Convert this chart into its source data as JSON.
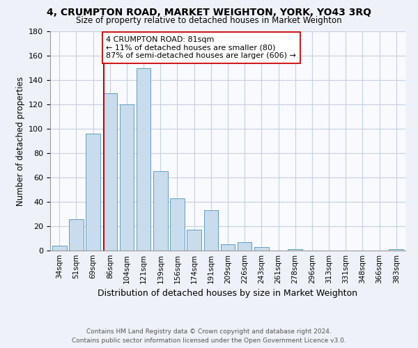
{
  "title": "4, CRUMPTON ROAD, MARKET WEIGHTON, YORK, YO43 3RQ",
  "subtitle": "Size of property relative to detached houses in Market Weighton",
  "xlabel": "Distribution of detached houses by size in Market Weighton",
  "ylabel": "Number of detached properties",
  "bar_labels": [
    "34sqm",
    "51sqm",
    "69sqm",
    "86sqm",
    "104sqm",
    "121sqm",
    "139sqm",
    "156sqm",
    "174sqm",
    "191sqm",
    "209sqm",
    "226sqm",
    "243sqm",
    "261sqm",
    "278sqm",
    "296sqm",
    "313sqm",
    "331sqm",
    "348sqm",
    "366sqm",
    "383sqm"
  ],
  "bar_values": [
    4,
    26,
    96,
    129,
    120,
    150,
    65,
    43,
    17,
    33,
    5,
    7,
    3,
    0,
    1,
    0,
    0,
    0,
    0,
    0,
    1
  ],
  "bar_color": "#c9dced",
  "bar_edge_color": "#5f9ec0",
  "ylim": [
    0,
    180
  ],
  "yticks": [
    0,
    20,
    40,
    60,
    80,
    100,
    120,
    140,
    160,
    180
  ],
  "vline_color": "#cc0000",
  "annotation_text": "4 CRUMPTON ROAD: 81sqm\n← 11% of detached houses are smaller (80)\n87% of semi-detached houses are larger (606) →",
  "annotation_box_color": "#ffffff",
  "annotation_box_edge_color": "#cc0000",
  "footer_line1": "Contains HM Land Registry data © Crown copyright and database right 2024.",
  "footer_line2": "Contains public sector information licensed under the Open Government Licence v3.0.",
  "bg_color": "#eef2f8",
  "plot_bg_color": "#f8fafd",
  "grid_color": "#c5d0e0"
}
